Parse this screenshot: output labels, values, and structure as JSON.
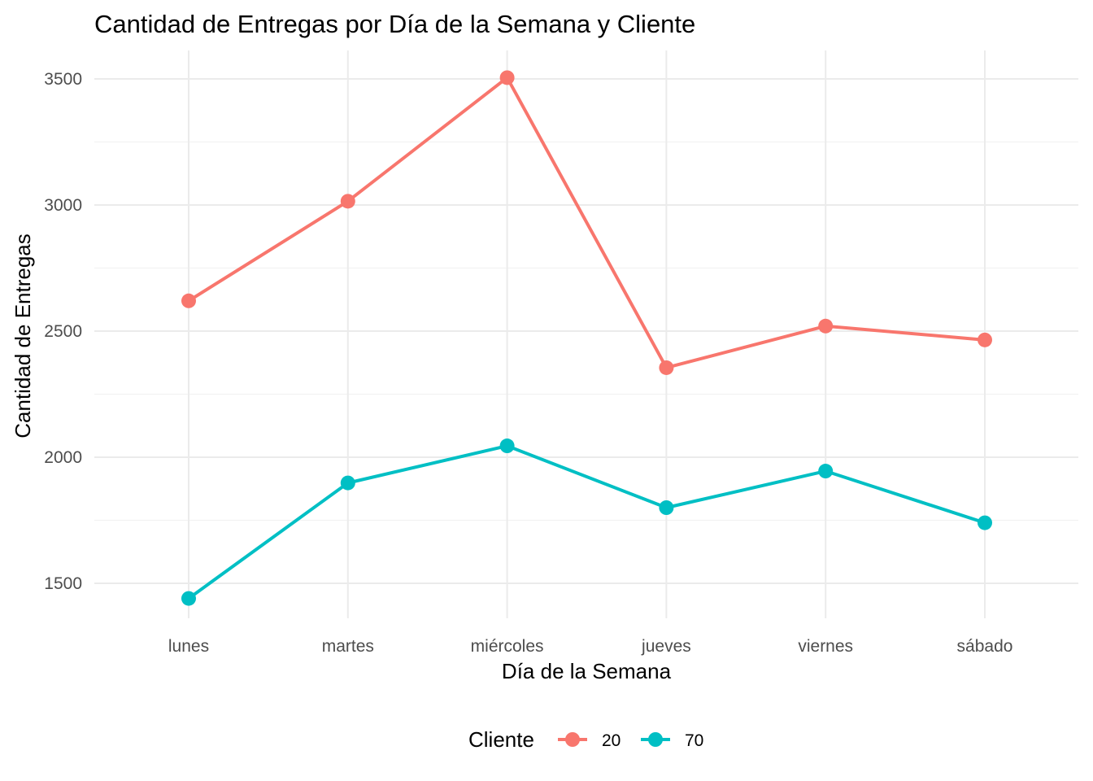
{
  "chart_data": {
    "type": "line",
    "title": "Cantidad de Entregas por Día de la Semana y Cliente",
    "xlabel": "Día de la Semana",
    "ylabel": "Cantidad de Entregas",
    "categories": [
      "lunes",
      "martes",
      "miércoles",
      "jueves",
      "viernes",
      "sábado"
    ],
    "y_ticks": [
      1500,
      2000,
      2500,
      3000,
      3500
    ],
    "y_minor_ticks": [
      1750,
      2250,
      2750,
      3250
    ],
    "ylim": [
      1380,
      3610
    ],
    "grid": true,
    "legend": {
      "title": "Cliente",
      "position": "bottom"
    },
    "series": [
      {
        "name": "20",
        "color": "#F8766D",
        "values": [
          2620,
          3015,
          3505,
          2355,
          2520,
          2465
        ]
      },
      {
        "name": "70",
        "color": "#00BFC4",
        "values": [
          1440,
          1898,
          2045,
          1800,
          1945,
          1740
        ]
      }
    ]
  }
}
